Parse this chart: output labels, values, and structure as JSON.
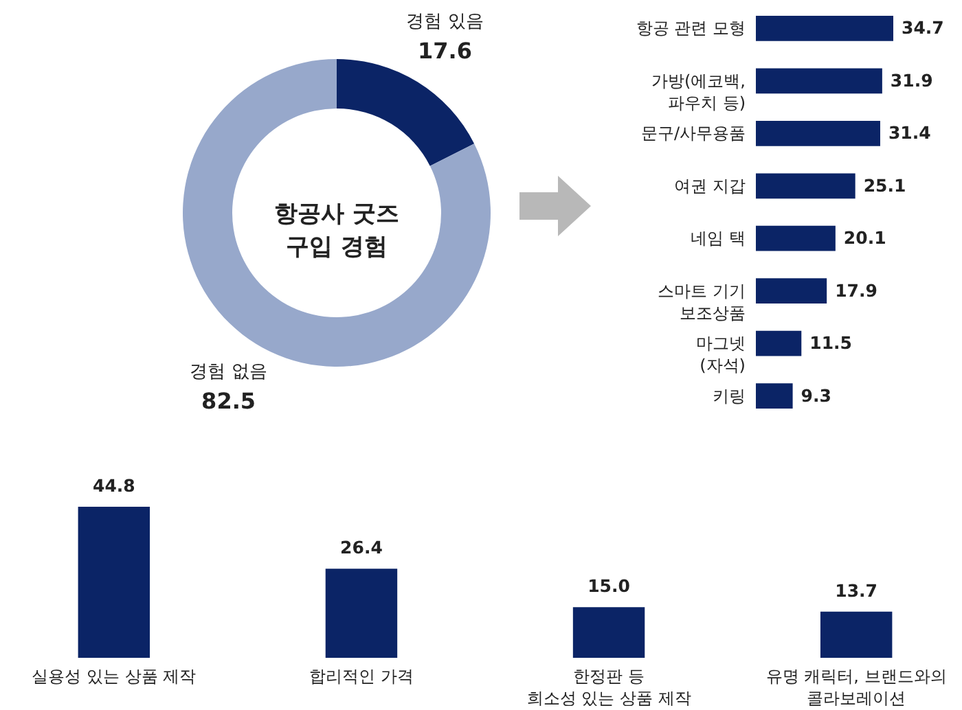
{
  "chart_data": [
    {
      "type": "donut",
      "title": "항공사 굿즈\n구입 경험",
      "categories": [
        "경험 있음",
        "경험 없음"
      ],
      "values": [
        17.6,
        82.5
      ],
      "colors": [
        "#0b2466",
        "#97a8cb"
      ],
      "data_labels": true
    },
    {
      "type": "bar",
      "orientation": "horizontal",
      "categories": [
        "항공 관련 모형",
        "가방(에코백,\n파우치 등)",
        "문구/사무용품",
        "여권 지갑",
        "네임 택",
        "스마트 기기\n보조상품",
        "마그넷\n(자석)",
        "키링"
      ],
      "values": [
        34.7,
        31.9,
        31.4,
        25.1,
        20.1,
        17.9,
        11.5,
        9.3
      ],
      "color": "#0b2466",
      "data_labels": true
    },
    {
      "type": "bar",
      "categories": [
        "실용성 있는 상품 제작",
        "합리적인 가격",
        "한정판 등\n희소성 있는 상품 제작",
        "유명 캐릭터, 브랜드와의\n콜라보레이션"
      ],
      "values": [
        44.8,
        26.4,
        15.0,
        13.7
      ],
      "value_labels": [
        "44.8",
        "26.4",
        "15.0",
        "13.7"
      ],
      "color": "#0b2466"
    }
  ]
}
